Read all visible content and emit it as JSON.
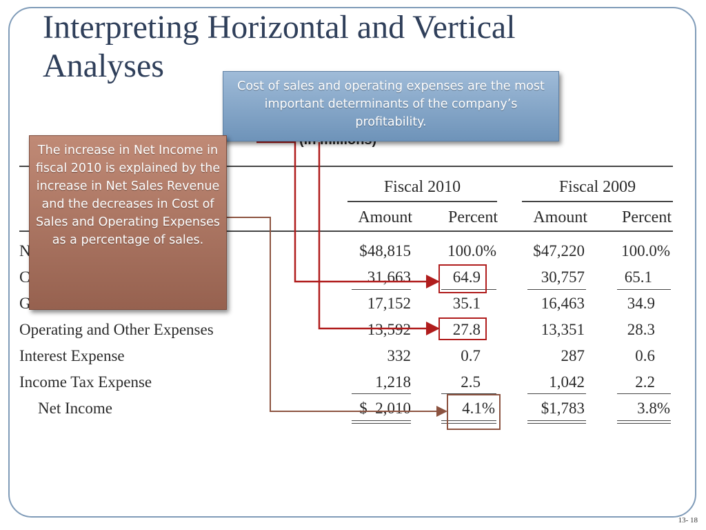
{
  "slide": {
    "title": "Interpreting Horizontal and Vertical Analyses",
    "number": "13- 18"
  },
  "callouts": {
    "top": "Cost of sales and operating expenses are the most important determinants of the company’s profitability.",
    "left": "The increase in Net Income in fiscal 2010 is explained by the increase in Net Sales Revenue and the decreases in Cost of Sales and Operating Expenses as a percentage of sales."
  },
  "table": {
    "partial_caption": "(in millions)",
    "year_headers": [
      "Fiscal 2010",
      "Fiscal 2009"
    ],
    "column_headers": [
      "Amount",
      "Percent",
      "Amount",
      "Percent"
    ],
    "rows": [
      {
        "label": "N",
        "cells": [
          "$48,815",
          "100.0%",
          "$47,220",
          "100.0%"
        ]
      },
      {
        "label": "C",
        "cells": [
          "31,663",
          "64.9",
          "30,757",
          "65.1"
        ]
      },
      {
        "label": "G",
        "cells": [
          "17,152",
          "35.1",
          "16,463",
          "34.9"
        ]
      },
      {
        "label": "Operating and Other Expenses",
        "cells": [
          "13,592",
          "27.8",
          "13,351",
          "28.3"
        ]
      },
      {
        "label": "Interest Expense",
        "cells": [
          "332",
          "0.7",
          "287",
          "0.6"
        ]
      },
      {
        "label": "Income Tax Expense",
        "cells": [
          "1,218",
          "2.5",
          "1,042",
          "2.2"
        ]
      },
      {
        "label": "Net Income",
        "cells": [
          "$  2,010",
          "4.1%",
          "$1,783",
          "3.8%"
        ]
      }
    ]
  },
  "colors": {
    "frame": "#7f9bb8",
    "title": "#2f3f5a",
    "arrow_red": "#b01c1c",
    "arrow_brown": "#8c5340"
  }
}
